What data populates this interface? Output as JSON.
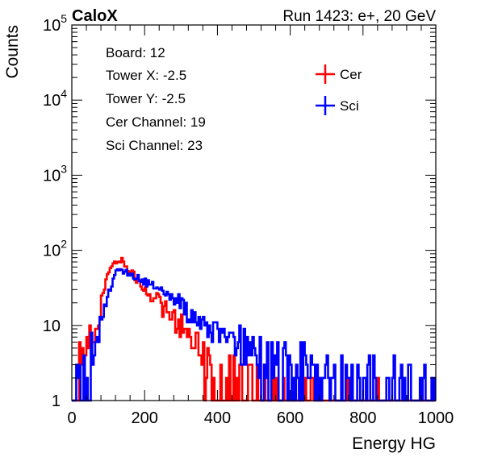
{
  "header": {
    "experiment": "CaloX",
    "run_label": "Run 1423: e+, 20 GeV"
  },
  "info": {
    "lines": [
      "Board: 12",
      "Tower X: -2.5",
      "Tower Y: -2.5",
      "Cer Channel: 19",
      "Sci Channel: 23"
    ]
  },
  "colors": {
    "cer": "#ff0000",
    "sci": "#0000ff"
  },
  "chart_data": {
    "type": "line",
    "xlabel": "Energy HG",
    "ylabel": "Counts",
    "xlim": [
      0,
      1000
    ],
    "ylim": [
      1,
      100000
    ],
    "log_y": true,
    "grid": false,
    "legend_position": "top-right",
    "x_ticks": [
      0,
      200,
      400,
      600,
      800,
      1000
    ],
    "x_tick_labels": [
      "0",
      "200",
      "400",
      "600",
      "800",
      "1000"
    ],
    "y_ticks": [
      1,
      10,
      100,
      1000,
      10000,
      100000
    ],
    "y_tick_labels": [
      {
        "base": "1",
        "exp": ""
      },
      {
        "base": "10",
        "exp": ""
      },
      {
        "base": "10",
        "exp": "2"
      },
      {
        "base": "10",
        "exp": "3"
      },
      {
        "base": "10",
        "exp": "4"
      },
      {
        "base": "10",
        "exp": "5"
      }
    ],
    "bin_width": 4,
    "series": [
      {
        "name": "Cer",
        "color": "#ff0000",
        "x": [
          0,
          20,
          40,
          60,
          80,
          100,
          120,
          140,
          160,
          180,
          200,
          220,
          240,
          260,
          280,
          300,
          320,
          340,
          360,
          380,
          400,
          440,
          480,
          520,
          560,
          600,
          640,
          700,
          760,
          800,
          820,
          840
        ],
        "y": [
          1,
          4,
          6,
          8,
          18,
          50,
          75,
          72,
          55,
          40,
          30,
          22,
          18,
          15,
          12,
          10,
          7,
          5,
          4,
          3,
          2.5,
          2,
          2,
          1.5,
          1.4,
          1.3,
          1.2,
          1.2,
          1.1,
          1.1,
          1.1,
          1
        ]
      },
      {
        "name": "Sci",
        "color": "#0000ff",
        "x": [
          0,
          20,
          40,
          60,
          80,
          100,
          120,
          140,
          160,
          180,
          200,
          220,
          240,
          260,
          280,
          300,
          320,
          340,
          360,
          380,
          400,
          420,
          440,
          460,
          480,
          500,
          520,
          560,
          600,
          640,
          680,
          720,
          760,
          800,
          840,
          880,
          920,
          960,
          1000
        ],
        "y": [
          1,
          2,
          3,
          5,
          10,
          25,
          48,
          55,
          50,
          45,
          38,
          35,
          32,
          28,
          22,
          18,
          14,
          12,
          10,
          9,
          8,
          7,
          6,
          5,
          5,
          4,
          4,
          3.5,
          3,
          3,
          2.5,
          2.5,
          2.2,
          2,
          2,
          1.8,
          1.6,
          1.5,
          1.4
        ]
      }
    ]
  }
}
